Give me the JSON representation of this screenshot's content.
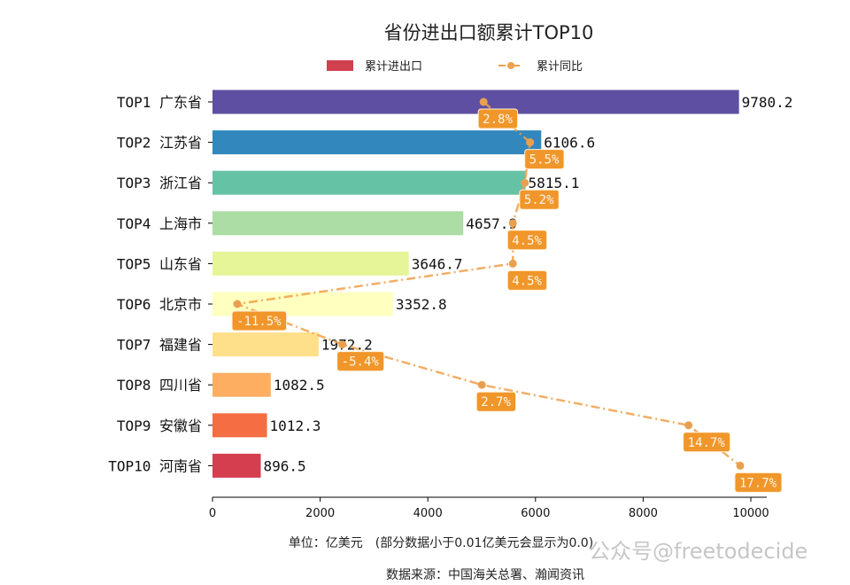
{
  "chart_data": {
    "type": "bar",
    "title": "省份进出口额累计TOP10",
    "legend": [
      {
        "label": "累计进出口",
        "type": "bar",
        "color": "#d0404f"
      },
      {
        "label": "累计同比",
        "type": "line",
        "color": "#f0a04a"
      }
    ],
    "legend_placement": "top-center",
    "categories": [
      "TOP1 广东省",
      "TOP2 江苏省",
      "TOP3 浙江省",
      "TOP4 上海市",
      "TOP5 山东省",
      "TOP6 北京市",
      "TOP7 福建省",
      "TOP8 四川省",
      "TOP9 安徽省",
      "TOP10 河南省"
    ],
    "series": [
      {
        "name": "累计进出口",
        "type": "bar",
        "values": [
          9780.2,
          6106.6,
          5815.1,
          4657.9,
          3646.7,
          3352.8,
          1972.2,
          1082.5,
          1012.3,
          896.5
        ],
        "value_labels": [
          "9780.2",
          "6106.6",
          "5815.1",
          "4657.9",
          "3646.7",
          "3352.8",
          "1972.2",
          "1082.5",
          "1012.3",
          "896.5"
        ],
        "colors": [
          "#5e4fa2",
          "#3288bd",
          "#66c2a5",
          "#abdda4",
          "#e6f598",
          "#ffffbf",
          "#fee08b",
          "#fdae61",
          "#f46d43",
          "#d53e4f"
        ]
      },
      {
        "name": "累计同比",
        "type": "line",
        "unit": "%",
        "values": [
          2.8,
          5.5,
          5.2,
          4.5,
          4.5,
          -11.5,
          -5.4,
          2.7,
          14.7,
          17.7
        ],
        "value_labels": [
          "2.8%",
          "5.5%",
          "5.2%",
          "4.5%",
          "4.5%",
          "-11.5%",
          "-5.4%",
          "2.7%",
          "14.7%",
          "17.7%"
        ],
        "color": "#f0a04a",
        "style": "dash-dot"
      }
    ],
    "xlabel": "单位：亿美元　(部分数据小于0.01亿美元会显示为0.0)",
    "xlim": [
      0,
      10300
    ],
    "xticks": [
      "0",
      "2000",
      "4000",
      "6000",
      "8000",
      "10000"
    ],
    "grid": false
  },
  "footer": {
    "source": "数据来源：中国海关总署、瀚闻资讯"
  },
  "watermark": "公众号@freetodecide"
}
